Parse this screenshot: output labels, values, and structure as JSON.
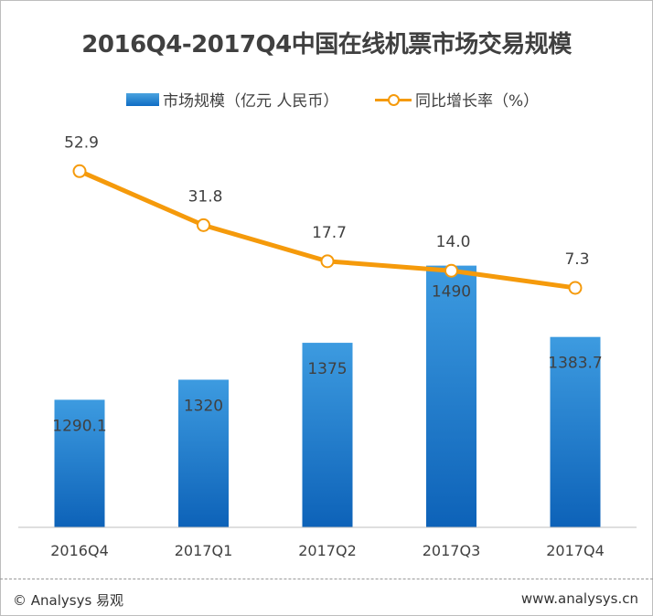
{
  "chart_data": {
    "type": "bar",
    "title": "2016Q4-2017Q4中国在线机票市场交易规模",
    "categories": [
      "2016Q4",
      "2017Q1",
      "2017Q2",
      "2017Q3",
      "2017Q4"
    ],
    "series": [
      {
        "name": "市场规模（亿元 人民币）",
        "type": "bar",
        "values": [
          1290.1,
          1320,
          1375,
          1490,
          1383.7
        ],
        "labels": [
          "1290.1",
          "1320",
          "1375",
          "1490",
          "1383.7"
        ],
        "color": "#1a7fd0"
      },
      {
        "name": "同比增长率（%）",
        "type": "line",
        "values": [
          52.9,
          31.8,
          17.7,
          14.0,
          7.3
        ],
        "labels": [
          "52.9",
          "31.8",
          "17.7",
          "14.0",
          "7.3"
        ],
        "color": "#f59a0b"
      }
    ],
    "legend_position": "top"
  },
  "footer": {
    "left": "© Analysys 易观",
    "right": "www.analysys.cn"
  }
}
